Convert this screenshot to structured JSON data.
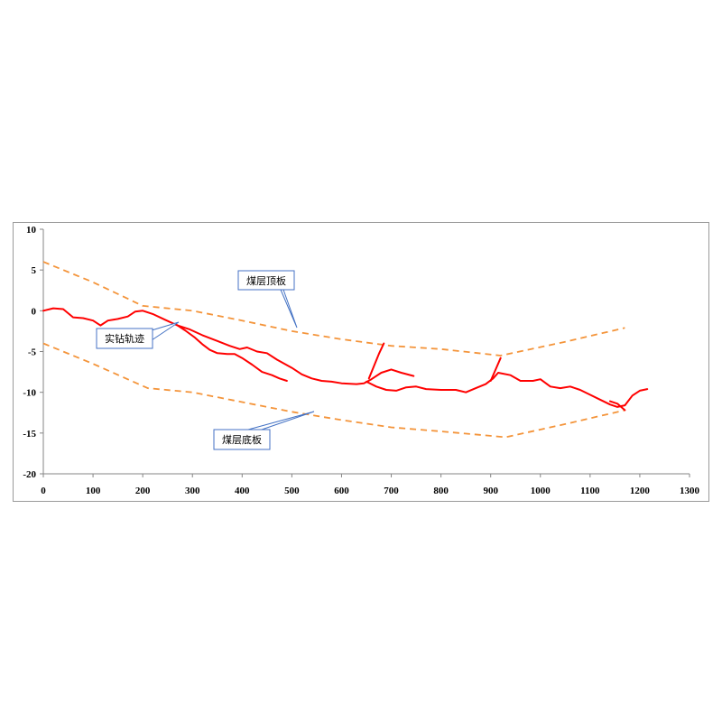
{
  "chart_data": {
    "type": "line",
    "xlim": [
      0,
      1300
    ],
    "ylim": [
      -20,
      10
    ],
    "x_ticks": [
      0,
      100,
      200,
      300,
      400,
      500,
      600,
      700,
      800,
      900,
      1000,
      1100,
      1200,
      1300
    ],
    "y_ticks": [
      10,
      5,
      0,
      -5,
      -10,
      -15,
      -20
    ],
    "grid": false,
    "legend": "none",
    "colors": {
      "trajectory": "#ff0000",
      "boundary": "#f4943a",
      "callout_border": "#4472c4"
    },
    "series": [
      {
        "role": "roof",
        "style": "dashed",
        "points": [
          [
            0,
            6
          ],
          [
            100,
            3.5
          ],
          [
            200,
            0.6
          ],
          [
            300,
            0
          ],
          [
            400,
            -1.2
          ],
          [
            500,
            -2.5
          ],
          [
            600,
            -3.5
          ],
          [
            700,
            -4.3
          ],
          [
            800,
            -4.7
          ],
          [
            920,
            -5.5
          ],
          [
            1050,
            -3.8
          ],
          [
            1170,
            -2.1
          ]
        ]
      },
      {
        "role": "floor",
        "style": "dashed",
        "points": [
          [
            0,
            -4
          ],
          [
            100,
            -6.5
          ],
          [
            210,
            -9.5
          ],
          [
            300,
            -10
          ],
          [
            400,
            -11.2
          ],
          [
            500,
            -12.4
          ],
          [
            600,
            -13.4
          ],
          [
            700,
            -14.3
          ],
          [
            800,
            -14.8
          ],
          [
            930,
            -15.5
          ],
          [
            1050,
            -13.9
          ],
          [
            1170,
            -12.2
          ]
        ]
      },
      {
        "role": "trajectory-main",
        "style": "solid",
        "points": [
          [
            0,
            0
          ],
          [
            20,
            0.3
          ],
          [
            40,
            0.2
          ],
          [
            60,
            -0.8
          ],
          [
            80,
            -0.9
          ],
          [
            100,
            -1.2
          ],
          [
            115,
            -1.8
          ],
          [
            130,
            -1.2
          ],
          [
            150,
            -1
          ],
          [
            170,
            -0.7
          ],
          [
            185,
            -0.1
          ],
          [
            200,
            0
          ],
          [
            220,
            -0.4
          ],
          [
            245,
            -1.1
          ],
          [
            270,
            -1.8
          ],
          [
            295,
            -2.3
          ],
          [
            320,
            -3
          ],
          [
            350,
            -3.7
          ],
          [
            375,
            -4.3
          ],
          [
            395,
            -4.7
          ],
          [
            410,
            -4.5
          ],
          [
            430,
            -5
          ],
          [
            450,
            -5.2
          ],
          [
            470,
            -6
          ],
          [
            500,
            -7
          ],
          [
            520,
            -7.8
          ],
          [
            540,
            -8.3
          ],
          [
            560,
            -8.6
          ],
          [
            580,
            -8.7
          ],
          [
            600,
            -8.9
          ],
          [
            630,
            -9
          ],
          [
            645,
            -8.9
          ],
          [
            660,
            -8.4
          ],
          [
            680,
            -7.6
          ],
          [
            700,
            -7.2
          ],
          [
            720,
            -7.6
          ],
          [
            745,
            -8
          ]
        ]
      },
      {
        "role": "trajectory-lower",
        "style": "solid",
        "points": [
          [
            265,
            -1.6
          ],
          [
            285,
            -2.4
          ],
          [
            305,
            -3.3
          ],
          [
            320,
            -4.1
          ],
          [
            335,
            -4.8
          ],
          [
            350,
            -5.2
          ],
          [
            370,
            -5.3
          ],
          [
            385,
            -5.3
          ],
          [
            400,
            -5.8
          ],
          [
            420,
            -6.6
          ],
          [
            440,
            -7.5
          ],
          [
            460,
            -7.9
          ],
          [
            475,
            -8.3
          ],
          [
            490,
            -8.6
          ]
        ]
      },
      {
        "role": "trajectory-far",
        "style": "solid",
        "points": [
          [
            650,
            -8.7
          ],
          [
            670,
            -9.3
          ],
          [
            690,
            -9.7
          ],
          [
            710,
            -9.8
          ],
          [
            730,
            -9.4
          ],
          [
            750,
            -9.3
          ],
          [
            770,
            -9.6
          ],
          [
            800,
            -9.7
          ],
          [
            830,
            -9.7
          ],
          [
            850,
            -10
          ],
          [
            870,
            -9.5
          ],
          [
            890,
            -9
          ],
          [
            905,
            -8.3
          ],
          [
            915,
            -7.6
          ],
          [
            940,
            -7.9
          ],
          [
            960,
            -8.6
          ],
          [
            985,
            -8.6
          ],
          [
            1000,
            -8.4
          ],
          [
            1020,
            -9.3
          ],
          [
            1040,
            -9.5
          ],
          [
            1060,
            -9.3
          ],
          [
            1080,
            -9.7
          ],
          [
            1100,
            -10.3
          ],
          [
            1120,
            -10.9
          ],
          [
            1140,
            -11.5
          ],
          [
            1155,
            -11.8
          ],
          [
            1170,
            -11.6
          ],
          [
            1185,
            -10.4
          ],
          [
            1200,
            -9.8
          ],
          [
            1215,
            -9.6
          ]
        ]
      },
      {
        "role": "branch-up-1",
        "style": "solid",
        "points": [
          [
            655,
            -8.3
          ],
          [
            665,
            -6.8
          ],
          [
            675,
            -5.3
          ],
          [
            685,
            -4
          ]
        ]
      },
      {
        "role": "branch-up-2",
        "style": "solid",
        "points": [
          [
            900,
            -8.6
          ],
          [
            910,
            -7.2
          ],
          [
            920,
            -5.8
          ]
        ]
      },
      {
        "role": "branch-end",
        "style": "solid",
        "points": [
          [
            1140,
            -11.1
          ],
          [
            1155,
            -11.4
          ],
          [
            1170,
            -12.2
          ]
        ]
      }
    ],
    "annotations": [
      {
        "text": "煤层顶板",
        "target": [
          510,
          -2.3
        ]
      },
      {
        "text": "实钻轨迹",
        "target": [
          270,
          -1.6
        ]
      },
      {
        "text": "煤层底板",
        "target": [
          545,
          -12.5
        ]
      }
    ]
  }
}
